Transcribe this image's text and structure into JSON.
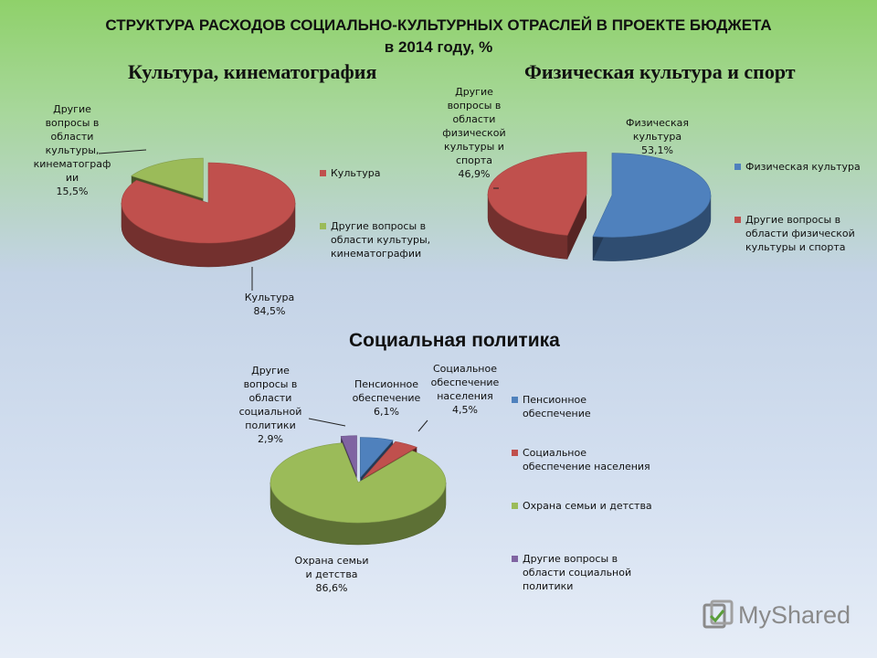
{
  "slide": {
    "title_line1": "СТРУКТУРА РАСХОДОВ СОЦИАЛЬНО-КУЛЬТУРНЫХ ОТРАСЛЕЙ В ПРОЕКТЕ БЮДЖЕТА",
    "title_line2": "в 2014 году, %"
  },
  "logo": {
    "text": "MyShared",
    "icon": "myshared-logo-icon"
  },
  "colors": {
    "red": "#c0504d",
    "green": "#9bbb59",
    "blue": "#4f81bd",
    "purple": "#8064a2"
  },
  "chart_data": [
    {
      "type": "pie",
      "title": "Культура, кинематография",
      "slices": [
        {
          "name": "Культура",
          "value": 84.5,
          "label_lines": [
            "Культура",
            "84,5%"
          ],
          "legend_lines": [
            "Культура"
          ],
          "color": "#c0504d"
        },
        {
          "name": "Другие вопросы в области культуры, кинематографии",
          "value": 15.5,
          "label_lines": [
            "Другие",
            "вопросы в",
            "области",
            "культуры,",
            "кинематограф",
            "ии",
            "15,5%"
          ],
          "legend_lines": [
            "Другие вопросы в",
            "области культуры,",
            "кинематографии"
          ],
          "color": "#9bbb59"
        }
      ],
      "legend": "right"
    },
    {
      "type": "pie",
      "title": "Физическая культура и спорт",
      "slices": [
        {
          "name": "Физическая культура",
          "value": 53.1,
          "label_lines": [
            "Физическая",
            "культура",
            "53,1%"
          ],
          "legend_lines": [
            "Физическая культура"
          ],
          "color": "#4f81bd"
        },
        {
          "name": "Другие вопросы в области физической культуры и спорта",
          "value": 46.9,
          "label_lines": [
            "Другие",
            "вопросы в",
            "области",
            "физической",
            "культуры и",
            "спорта",
            "46,9%"
          ],
          "legend_lines": [
            "Другие вопросы в",
            "области физической",
            "культуры и спорта"
          ],
          "color": "#c0504d"
        }
      ],
      "legend": "right"
    },
    {
      "type": "pie",
      "title": "Социальная политика",
      "slices": [
        {
          "name": "Пенсионное обеспечение",
          "value": 6.1,
          "label_lines": [
            "Пенсионное",
            "обеспечение",
            "6,1%"
          ],
          "legend_lines": [
            "Пенсионное",
            "обеспечение"
          ],
          "color": "#4f81bd"
        },
        {
          "name": "Социальное обеспечение населения",
          "value": 4.5,
          "label_lines": [
            "Социальное",
            "обеспечение",
            "населения",
            "4,5%"
          ],
          "legend_lines": [
            "Социальное",
            "обеспечение населения"
          ],
          "color": "#c0504d"
        },
        {
          "name": "Охрана семьи и детства",
          "value": 86.6,
          "label_lines": [
            "Охрана семьи",
            "и детства",
            "86,6%"
          ],
          "legend_lines": [
            "Охрана семьи и детства"
          ],
          "color": "#9bbb59"
        },
        {
          "name": "Другие вопросы в области социальной политики",
          "value": 2.9,
          "label_lines": [
            "Другие",
            "вопросы в",
            "области",
            "социальной",
            "политики",
            "2,9%"
          ],
          "legend_lines": [
            "Другие вопросы в",
            "области социальной",
            "политики"
          ],
          "color": "#8064a2"
        }
      ],
      "legend": "right"
    }
  ]
}
